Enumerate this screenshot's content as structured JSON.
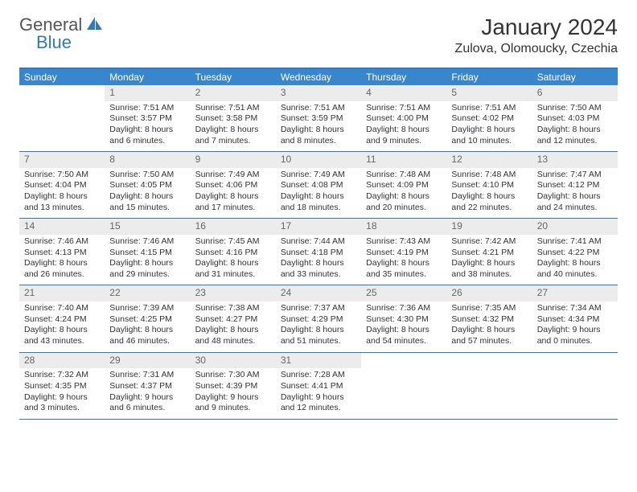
{
  "logo": {
    "part1": "General",
    "part2": "Blue"
  },
  "title": "January 2024",
  "location": "Zulova, Olomoucky, Czechia",
  "colors": {
    "header_bg": "#3a86cc",
    "border": "#2f79c2",
    "daynum_bg": "#ececec",
    "text": "#333333",
    "logo_gray": "#555555",
    "logo_blue": "#2f79c2"
  },
  "weekdays": [
    "Sunday",
    "Monday",
    "Tuesday",
    "Wednesday",
    "Thursday",
    "Friday",
    "Saturday"
  ],
  "weeks": [
    [
      {
        "num": "",
        "lines": []
      },
      {
        "num": "1",
        "lines": [
          "Sunrise: 7:51 AM",
          "Sunset: 3:57 PM",
          "Daylight: 8 hours",
          "and 6 minutes."
        ]
      },
      {
        "num": "2",
        "lines": [
          "Sunrise: 7:51 AM",
          "Sunset: 3:58 PM",
          "Daylight: 8 hours",
          "and 7 minutes."
        ]
      },
      {
        "num": "3",
        "lines": [
          "Sunrise: 7:51 AM",
          "Sunset: 3:59 PM",
          "Daylight: 8 hours",
          "and 8 minutes."
        ]
      },
      {
        "num": "4",
        "lines": [
          "Sunrise: 7:51 AM",
          "Sunset: 4:00 PM",
          "Daylight: 8 hours",
          "and 9 minutes."
        ]
      },
      {
        "num": "5",
        "lines": [
          "Sunrise: 7:51 AM",
          "Sunset: 4:02 PM",
          "Daylight: 8 hours",
          "and 10 minutes."
        ]
      },
      {
        "num": "6",
        "lines": [
          "Sunrise: 7:50 AM",
          "Sunset: 4:03 PM",
          "Daylight: 8 hours",
          "and 12 minutes."
        ]
      }
    ],
    [
      {
        "num": "7",
        "lines": [
          "Sunrise: 7:50 AM",
          "Sunset: 4:04 PM",
          "Daylight: 8 hours",
          "and 13 minutes."
        ]
      },
      {
        "num": "8",
        "lines": [
          "Sunrise: 7:50 AM",
          "Sunset: 4:05 PM",
          "Daylight: 8 hours",
          "and 15 minutes."
        ]
      },
      {
        "num": "9",
        "lines": [
          "Sunrise: 7:49 AM",
          "Sunset: 4:06 PM",
          "Daylight: 8 hours",
          "and 17 minutes."
        ]
      },
      {
        "num": "10",
        "lines": [
          "Sunrise: 7:49 AM",
          "Sunset: 4:08 PM",
          "Daylight: 8 hours",
          "and 18 minutes."
        ]
      },
      {
        "num": "11",
        "lines": [
          "Sunrise: 7:48 AM",
          "Sunset: 4:09 PM",
          "Daylight: 8 hours",
          "and 20 minutes."
        ]
      },
      {
        "num": "12",
        "lines": [
          "Sunrise: 7:48 AM",
          "Sunset: 4:10 PM",
          "Daylight: 8 hours",
          "and 22 minutes."
        ]
      },
      {
        "num": "13",
        "lines": [
          "Sunrise: 7:47 AM",
          "Sunset: 4:12 PM",
          "Daylight: 8 hours",
          "and 24 minutes."
        ]
      }
    ],
    [
      {
        "num": "14",
        "lines": [
          "Sunrise: 7:46 AM",
          "Sunset: 4:13 PM",
          "Daylight: 8 hours",
          "and 26 minutes."
        ]
      },
      {
        "num": "15",
        "lines": [
          "Sunrise: 7:46 AM",
          "Sunset: 4:15 PM",
          "Daylight: 8 hours",
          "and 29 minutes."
        ]
      },
      {
        "num": "16",
        "lines": [
          "Sunrise: 7:45 AM",
          "Sunset: 4:16 PM",
          "Daylight: 8 hours",
          "and 31 minutes."
        ]
      },
      {
        "num": "17",
        "lines": [
          "Sunrise: 7:44 AM",
          "Sunset: 4:18 PM",
          "Daylight: 8 hours",
          "and 33 minutes."
        ]
      },
      {
        "num": "18",
        "lines": [
          "Sunrise: 7:43 AM",
          "Sunset: 4:19 PM",
          "Daylight: 8 hours",
          "and 35 minutes."
        ]
      },
      {
        "num": "19",
        "lines": [
          "Sunrise: 7:42 AM",
          "Sunset: 4:21 PM",
          "Daylight: 8 hours",
          "and 38 minutes."
        ]
      },
      {
        "num": "20",
        "lines": [
          "Sunrise: 7:41 AM",
          "Sunset: 4:22 PM",
          "Daylight: 8 hours",
          "and 40 minutes."
        ]
      }
    ],
    [
      {
        "num": "21",
        "lines": [
          "Sunrise: 7:40 AM",
          "Sunset: 4:24 PM",
          "Daylight: 8 hours",
          "and 43 minutes."
        ]
      },
      {
        "num": "22",
        "lines": [
          "Sunrise: 7:39 AM",
          "Sunset: 4:25 PM",
          "Daylight: 8 hours",
          "and 46 minutes."
        ]
      },
      {
        "num": "23",
        "lines": [
          "Sunrise: 7:38 AM",
          "Sunset: 4:27 PM",
          "Daylight: 8 hours",
          "and 48 minutes."
        ]
      },
      {
        "num": "24",
        "lines": [
          "Sunrise: 7:37 AM",
          "Sunset: 4:29 PM",
          "Daylight: 8 hours",
          "and 51 minutes."
        ]
      },
      {
        "num": "25",
        "lines": [
          "Sunrise: 7:36 AM",
          "Sunset: 4:30 PM",
          "Daylight: 8 hours",
          "and 54 minutes."
        ]
      },
      {
        "num": "26",
        "lines": [
          "Sunrise: 7:35 AM",
          "Sunset: 4:32 PM",
          "Daylight: 8 hours",
          "and 57 minutes."
        ]
      },
      {
        "num": "27",
        "lines": [
          "Sunrise: 7:34 AM",
          "Sunset: 4:34 PM",
          "Daylight: 9 hours",
          "and 0 minutes."
        ]
      }
    ],
    [
      {
        "num": "28",
        "lines": [
          "Sunrise: 7:32 AM",
          "Sunset: 4:35 PM",
          "Daylight: 9 hours",
          "and 3 minutes."
        ]
      },
      {
        "num": "29",
        "lines": [
          "Sunrise: 7:31 AM",
          "Sunset: 4:37 PM",
          "Daylight: 9 hours",
          "and 6 minutes."
        ]
      },
      {
        "num": "30",
        "lines": [
          "Sunrise: 7:30 AM",
          "Sunset: 4:39 PM",
          "Daylight: 9 hours",
          "and 9 minutes."
        ]
      },
      {
        "num": "31",
        "lines": [
          "Sunrise: 7:28 AM",
          "Sunset: 4:41 PM",
          "Daylight: 9 hours",
          "and 12 minutes."
        ]
      },
      {
        "num": "",
        "lines": []
      },
      {
        "num": "",
        "lines": []
      },
      {
        "num": "",
        "lines": []
      }
    ]
  ]
}
